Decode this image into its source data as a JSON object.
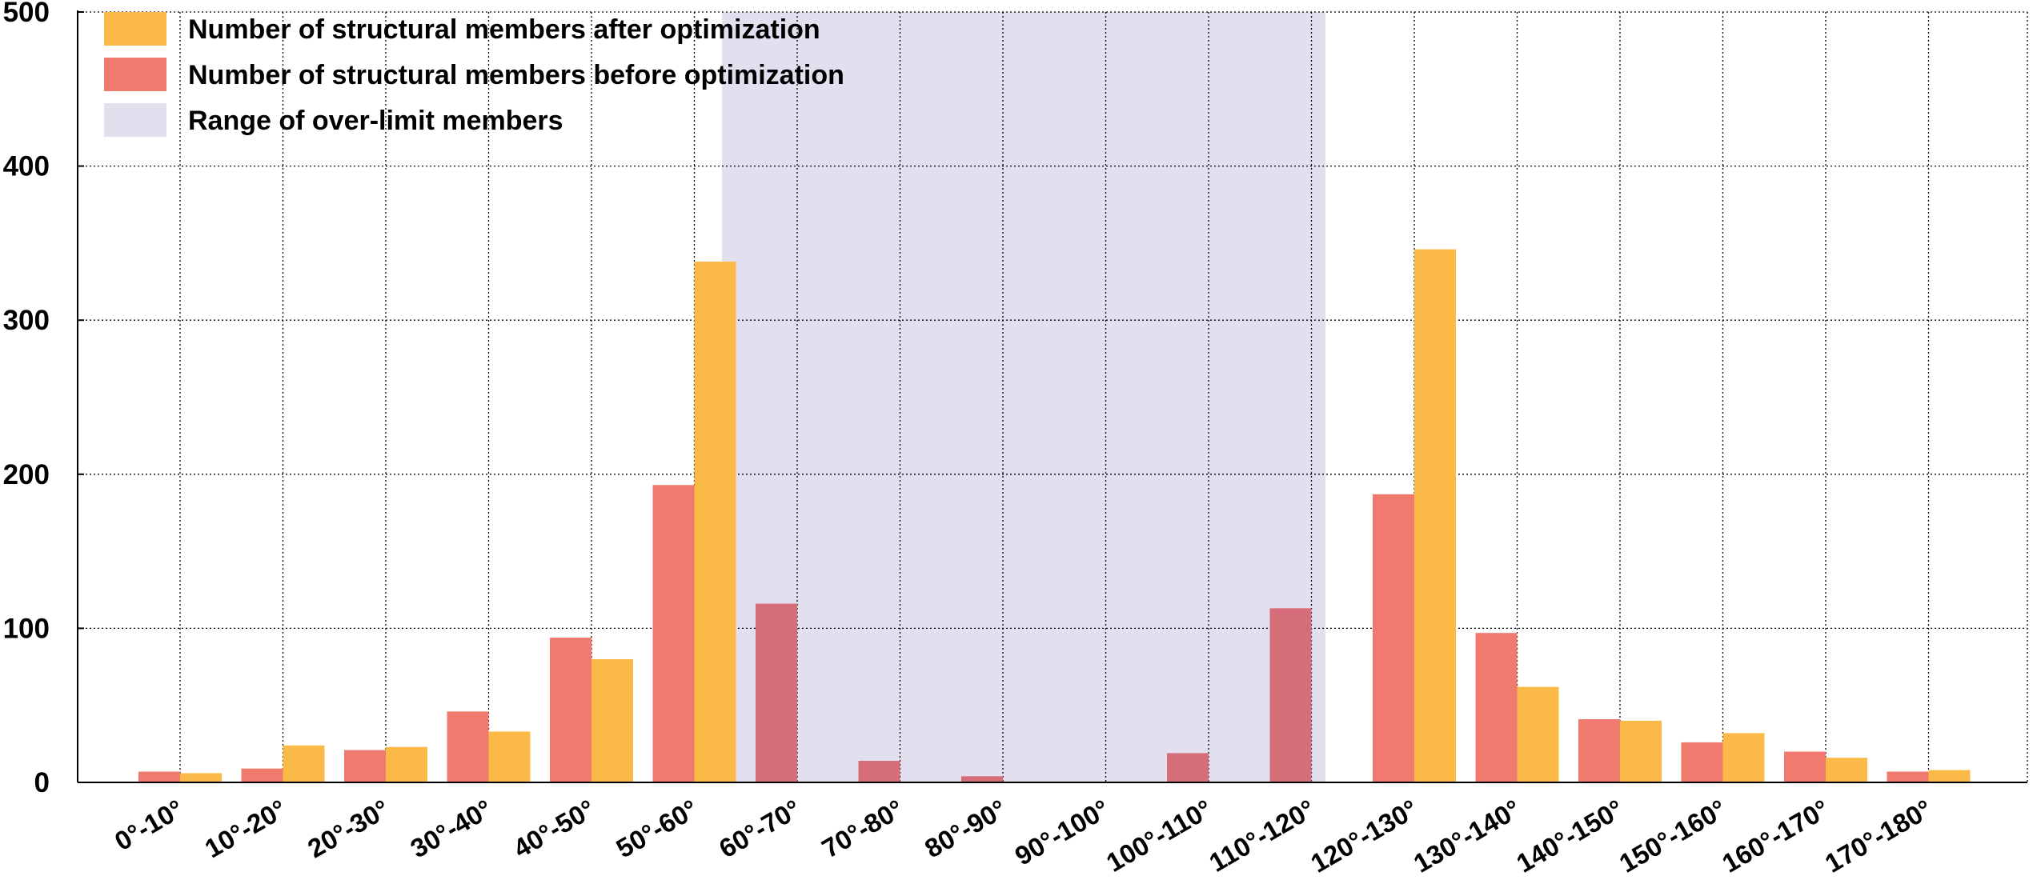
{
  "chart_data": {
    "type": "bar",
    "categories": [
      "0°-10°",
      "10°-20°",
      "20°-30°",
      "30°-40°",
      "40°-50°",
      "50°-60°",
      "60°-70°",
      "70°-80°",
      "80°-90°",
      "90°-100°",
      "100°-110°",
      "110°-120°",
      "120°-130°",
      "130°-140°",
      "140°-150°",
      "150°-160°",
      "160°-170°",
      "170°-180°"
    ],
    "series": [
      {
        "name": "Number of structural members before optimization",
        "color": "#F07A6E",
        "values": [
          7,
          9,
          21,
          46,
          94,
          193,
          116,
          14,
          4,
          0,
          19,
          113,
          187,
          97,
          41,
          26,
          20,
          7
        ]
      },
      {
        "name": "Number of structural members after optimization",
        "color": "#FBBA48",
        "values": [
          6,
          24,
          23,
          33,
          80,
          338,
          0,
          0,
          0,
          0,
          0,
          0,
          346,
          62,
          40,
          32,
          16,
          8
        ]
      }
    ],
    "secondary_bars": [
      {
        "category": "160°-170°",
        "series": "Number of structural members before optimization",
        "value": 14
      }
    ],
    "shaded_region": {
      "name": "Range of over-limit members",
      "from": "60°-70°",
      "to": "110°-120°",
      "color": "#E2DFEE"
    },
    "legend": [
      {
        "label": "Number of structural members after optimization",
        "color": "#FBBA48"
      },
      {
        "label": "Number of structural members before optimization",
        "color": "#F07A6E"
      },
      {
        "label": "Range of over-limit members",
        "color": "#E2DFEE"
      }
    ],
    "legend_position": "top-left",
    "yticks": [
      "0",
      "100",
      "200",
      "300",
      "400",
      "500"
    ],
    "ylim": [
      0,
      500
    ],
    "grid": true,
    "title": "",
    "xlabel": "",
    "ylabel": ""
  }
}
